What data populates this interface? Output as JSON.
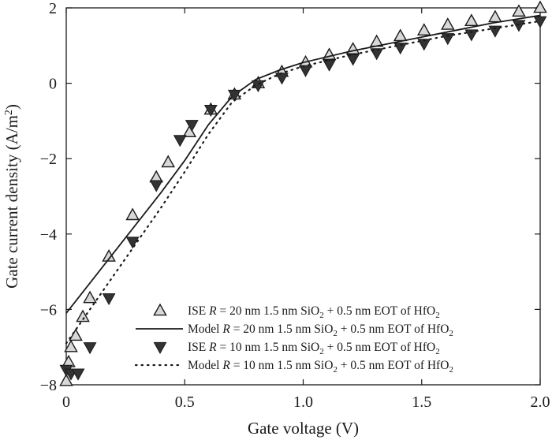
{
  "chart_data": {
    "type": "scatter",
    "xlabel": "Gate voltage (V)",
    "ylabel": "Gate current density (A/m²)",
    "xlim": [
      0,
      2.0
    ],
    "ylim": [
      -8,
      2
    ],
    "x_ticks": [
      "0",
      "0.5",
      "1.0",
      "1.5",
      "2.0"
    ],
    "y_ticks": [
      "−8",
      "−6",
      "−4",
      "−2",
      "0",
      "2"
    ],
    "x_tick_values": [
      0,
      0.5,
      1.0,
      1.5,
      2.0
    ],
    "y_tick_values": [
      -8,
      -6,
      -4,
      -2,
      0,
      2
    ],
    "grid": false,
    "legend_position": "bottom-right",
    "series": [
      {
        "name": "ISE R = 20 nm 1.5 nm SiO2 + 0.5 nm EOT of HfO2",
        "style": "triangle-up-open",
        "x": [
          0.0,
          0.01,
          0.02,
          0.04,
          0.07,
          0.1,
          0.18,
          0.28,
          0.38,
          0.43,
          0.52,
          0.61,
          0.71,
          0.81,
          0.91,
          1.01,
          1.11,
          1.21,
          1.31,
          1.41,
          1.51,
          1.61,
          1.71,
          1.81,
          1.91,
          2.0
        ],
        "y": [
          -7.9,
          -7.4,
          -7.0,
          -6.7,
          -6.2,
          -5.7,
          -4.6,
          -3.5,
          -2.5,
          -2.1,
          -1.3,
          -0.7,
          -0.3,
          0.0,
          0.3,
          0.55,
          0.75,
          0.9,
          1.1,
          1.25,
          1.4,
          1.55,
          1.65,
          1.75,
          1.9,
          2.0
        ]
      },
      {
        "name": "Model R = 20 nm 1.5 nm SiO2 + 0.5 nm EOT of HfO2",
        "style": "solid-line",
        "x": [
          0.0,
          0.1,
          0.2,
          0.3,
          0.4,
          0.5,
          0.6,
          0.7,
          0.8,
          0.9,
          1.0,
          1.2,
          1.4,
          1.6,
          1.8,
          2.0
        ],
        "y": [
          -6.1,
          -5.3,
          -4.5,
          -3.7,
          -2.9,
          -2.05,
          -1.1,
          -0.35,
          0.1,
          0.35,
          0.55,
          0.85,
          1.1,
          1.35,
          1.6,
          1.8
        ]
      },
      {
        "name": "ISE R = 10 nm 1.5 nm SiO2 + 0.5 nm EOT of HfO2",
        "style": "triangle-down-filled",
        "x": [
          0.0,
          0.02,
          0.05,
          0.1,
          0.18,
          0.28,
          0.38,
          0.48,
          0.53,
          0.61,
          0.71,
          0.81,
          0.91,
          1.01,
          1.11,
          1.21,
          1.31,
          1.41,
          1.51,
          1.61,
          1.71,
          1.81,
          1.91,
          2.0
        ],
        "y": [
          -7.6,
          -7.7,
          -7.7,
          -7.0,
          -5.7,
          -4.2,
          -2.7,
          -1.5,
          -1.1,
          -0.7,
          -0.3,
          -0.05,
          0.15,
          0.35,
          0.5,
          0.65,
          0.8,
          0.95,
          1.05,
          1.2,
          1.3,
          1.4,
          1.55,
          1.65
        ]
      },
      {
        "name": "Model R = 10 nm 1.5 nm SiO2 + 0.5 nm EOT of HfO2",
        "style": "dotted-line",
        "x": [
          0.0,
          0.1,
          0.2,
          0.3,
          0.4,
          0.5,
          0.6,
          0.7,
          0.8,
          0.9,
          1.0,
          1.2,
          1.4,
          1.6,
          1.8,
          2.0
        ],
        "y": [
          -6.9,
          -6.0,
          -5.1,
          -4.2,
          -3.3,
          -2.35,
          -1.35,
          -0.5,
          -0.05,
          0.25,
          0.45,
          0.75,
          1.0,
          1.25,
          1.45,
          1.65
        ]
      }
    ],
    "legend": [
      {
        "prefix": "ISE ",
        "r_label": "R",
        "mid": " = 20 nm 1.5 nm SiO",
        "sub1": "2",
        "mid2": " + 0.5 nm EOT of HfO",
        "sub2": "2"
      },
      {
        "prefix": "Model ",
        "r_label": "R",
        "mid": " = 20 nm 1.5 nm SiO",
        "sub1": "2",
        "mid2": " + 0.5 nm EOT of HfO",
        "sub2": "2"
      },
      {
        "prefix": "ISE ",
        "r_label": "R",
        "mid": " = 10 nm 1.5 nm SiO",
        "sub1": "2",
        "mid2": " + 0.5 nm EOT of HfO",
        "sub2": "2"
      },
      {
        "prefix": "Model ",
        "r_label": "R",
        "mid": " = 10 nm 1.5 nm SiO",
        "sub1": "2",
        "mid2": " + 0.5 nm EOT of HfO",
        "sub2": "2"
      }
    ],
    "ylabel_parts": {
      "main": "Gate current density (A/m",
      "sup": "2",
      "tail": ")"
    }
  }
}
